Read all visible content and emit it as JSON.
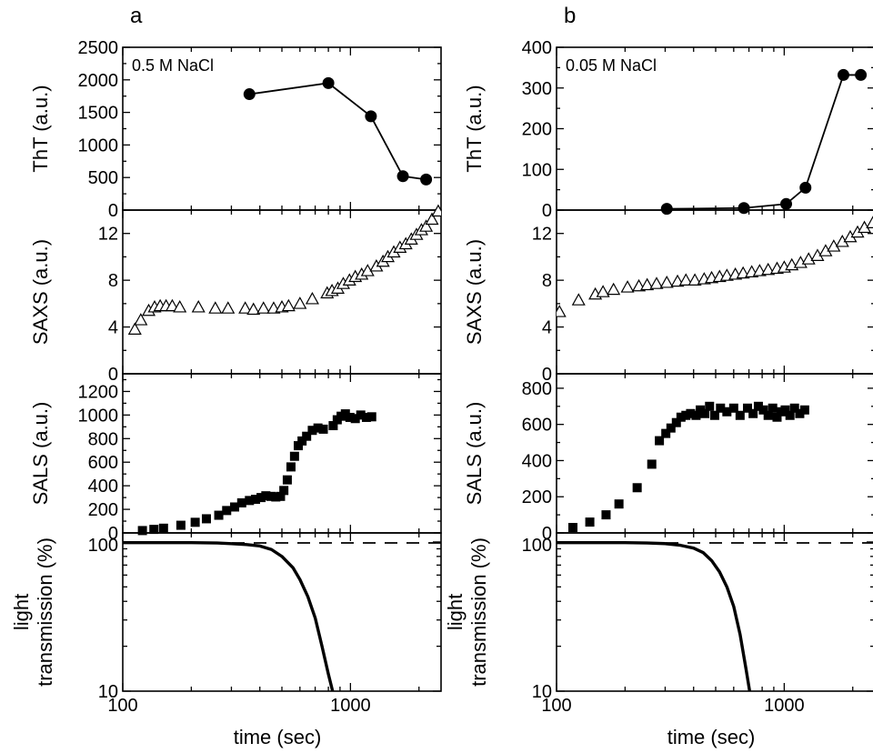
{
  "figure": {
    "panels": [
      {
        "letter": "a",
        "condition": "0.5 M NaCl",
        "xlabel": "time (sec)"
      },
      {
        "letter": "b",
        "condition": "0.05 M NaCl",
        "xlabel": "time (sec)"
      }
    ]
  },
  "chart_data": [
    {
      "panel": "a",
      "row": "ThT",
      "type": "line",
      "marker": "filled-circle",
      "ylabel": "ThT (a.u.)",
      "xscale": "log",
      "xlim": [
        100,
        2500
      ],
      "ylim": [
        0,
        2500
      ],
      "xticks": [],
      "yticks": [
        0,
        500,
        1000,
        1500,
        2000,
        2500
      ],
      "x": [
        360,
        800,
        1230,
        1700,
        2150
      ],
      "y": [
        1780,
        1950,
        1440,
        520,
        470
      ]
    },
    {
      "panel": "a",
      "row": "SAXS",
      "type": "scatter",
      "marker": "open-triangle",
      "ylabel": "SAXS (a.u.)",
      "xscale": "log",
      "xlim": [
        100,
        2500
      ],
      "ylim": [
        0,
        14
      ],
      "xticks": [],
      "yticks": [
        0,
        4,
        8,
        12
      ],
      "x": [
        113,
        120,
        130,
        138,
        146,
        155,
        165,
        178,
        215,
        255,
        290,
        345,
        375,
        415,
        460,
        500,
        535,
        600,
        680,
        790,
        830,
        880,
        930,
        990,
        1050,
        1120,
        1190,
        1300,
        1390,
        1460,
        1550,
        1650,
        1750,
        1850,
        1950,
        2050,
        2150,
        2280,
        2430
      ],
      "y": [
        3.8,
        4.6,
        5.4,
        5.7,
        5.8,
        5.8,
        5.8,
        5.7,
        5.7,
        5.6,
        5.6,
        5.6,
        5.5,
        5.6,
        5.6,
        5.7,
        5.8,
        6.0,
        6.4,
        6.9,
        7.1,
        7.3,
        7.7,
        8.0,
        8.3,
        8.5,
        8.8,
        9.2,
        9.6,
        10.0,
        10.4,
        10.8,
        11.1,
        11.5,
        11.9,
        12.3,
        12.6,
        13.2,
        13.9
      ]
    },
    {
      "panel": "a",
      "row": "SALS",
      "type": "scatter",
      "marker": "filled-square",
      "ylabel": "SALS (a.u.)",
      "xscale": "log",
      "xlim": [
        100,
        2500
      ],
      "ylim": [
        0,
        1350
      ],
      "xticks": [],
      "yticks": [
        0,
        200,
        400,
        600,
        800,
        1000,
        1200
      ],
      "x": [
        122,
        137,
        151,
        180,
        208,
        233,
        264,
        286,
        310,
        333,
        360,
        383,
        405,
        425,
        448,
        470,
        493,
        510,
        528,
        548,
        568,
        590,
        613,
        642,
        680,
        720,
        760,
        840,
        875,
        910,
        950,
        995,
        1050,
        1110,
        1175,
        1240
      ],
      "y": [
        20,
        30,
        40,
        65,
        90,
        120,
        150,
        190,
        220,
        255,
        275,
        285,
        300,
        315,
        310,
        305,
        310,
        360,
        450,
        560,
        650,
        740,
        780,
        820,
        870,
        890,
        880,
        910,
        960,
        990,
        1010,
        980,
        970,
        1000,
        980,
        985
      ]
    },
    {
      "panel": "a",
      "row": "light transmission",
      "type": "line",
      "ylabel": "light transmission (%)",
      "xlabel": "time (sec)",
      "xscale": "log",
      "yscale": "log",
      "xlim": [
        100,
        2500
      ],
      "ylim": [
        10,
        115
      ],
      "xticks": [
        100,
        1000
      ],
      "yticks": [
        10,
        100
      ],
      "series": [
        {
          "style": "solid",
          "x": [
            100,
            150,
            200,
            260,
            300,
            350,
            400,
            450,
            500,
            560,
            600,
            650,
            700,
            750,
            800,
            835
          ],
          "y": [
            99,
            99,
            99,
            98.5,
            97.5,
            96,
            94,
            89,
            80,
            67,
            56,
            43,
            31,
            20,
            13,
            10
          ]
        },
        {
          "style": "dashed",
          "x": [
            100,
            2500
          ],
          "y": [
            98.5,
            98.5
          ]
        }
      ]
    },
    {
      "panel": "b",
      "row": "ThT",
      "type": "line",
      "marker": "filled-circle",
      "ylabel": "ThT (a.u.)",
      "xscale": "log",
      "xlim": [
        100,
        2500
      ],
      "ylim": [
        0,
        400
      ],
      "xticks": [],
      "yticks": [
        0,
        100,
        200,
        300,
        400
      ],
      "x": [
        305,
        665,
        1020,
        1240,
        1820,
        2170
      ],
      "y": [
        3,
        5,
        15,
        55,
        332,
        332
      ]
    },
    {
      "panel": "b",
      "row": "SAXS",
      "type": "scatter",
      "marker": "open-triangle",
      "ylabel": "SAXS (a.u.)",
      "xscale": "log",
      "xlim": [
        100,
        2500
      ],
      "ylim": [
        0,
        14
      ],
      "xticks": [],
      "yticks": [
        0,
        4,
        8,
        12
      ],
      "x": [
        103,
        125,
        148,
        160,
        178,
        205,
        230,
        250,
        275,
        305,
        340,
        370,
        405,
        445,
        480,
        520,
        560,
        610,
        660,
        720,
        780,
        850,
        930,
        1000,
        1080,
        1180,
        1280,
        1400,
        1520,
        1650,
        1800,
        1950,
        2100,
        2250,
        2450
      ],
      "y": [
        5.3,
        6.3,
        6.8,
        7.0,
        7.2,
        7.4,
        7.5,
        7.6,
        7.7,
        7.8,
        7.9,
        8.0,
        8.0,
        8.1,
        8.2,
        8.3,
        8.4,
        8.5,
        8.6,
        8.7,
        8.8,
        8.9,
        9.0,
        9.1,
        9.3,
        9.5,
        9.8,
        10.1,
        10.5,
        10.9,
        11.3,
        11.7,
        12.1,
        12.5,
        12.9
      ]
    },
    {
      "panel": "b",
      "row": "SALS",
      "type": "scatter",
      "marker": "filled-square",
      "ylabel": "SALS (a.u.)",
      "xscale": "log",
      "xlim": [
        100,
        2500
      ],
      "ylim": [
        0,
        880
      ],
      "xticks": [],
      "yticks": [
        0,
        200,
        400,
        600,
        800
      ],
      "x": [
        118,
        140,
        165,
        188,
        226,
        262,
        283,
        302,
        318,
        336,
        352,
        370,
        388,
        410,
        428,
        448,
        470,
        495,
        525,
        560,
        600,
        640,
        690,
        730,
        770,
        810,
        850,
        890,
        930,
        970,
        1010,
        1060,
        1110,
        1170,
        1230
      ],
      "y": [
        30,
        60,
        100,
        160,
        250,
        380,
        510,
        550,
        580,
        610,
        640,
        650,
        660,
        650,
        680,
        660,
        700,
        650,
        690,
        670,
        690,
        650,
        690,
        660,
        700,
        680,
        650,
        690,
        640,
        670,
        680,
        650,
        690,
        660,
        680
      ]
    },
    {
      "panel": "b",
      "row": "light transmission",
      "type": "line",
      "ylabel": "light transmission (%)",
      "xlabel": "time (sec)",
      "xscale": "log",
      "yscale": "log",
      "xlim": [
        100,
        2500
      ],
      "ylim": [
        10,
        115
      ],
      "xticks": [
        100,
        1000
      ],
      "yticks": [
        10,
        100
      ],
      "series": [
        {
          "style": "solid",
          "x": [
            100,
            150,
            200,
            250,
            300,
            350,
            400,
            440,
            480,
            520,
            560,
            600,
            640,
            680,
            705
          ],
          "y": [
            99,
            99,
            99,
            98.5,
            97.5,
            95,
            91,
            85,
            75,
            63,
            50,
            37,
            24,
            14,
            10
          ]
        },
        {
          "style": "dashed",
          "x": [
            100,
            2500
          ],
          "y": [
            98.5,
            98.5
          ]
        }
      ]
    }
  ]
}
